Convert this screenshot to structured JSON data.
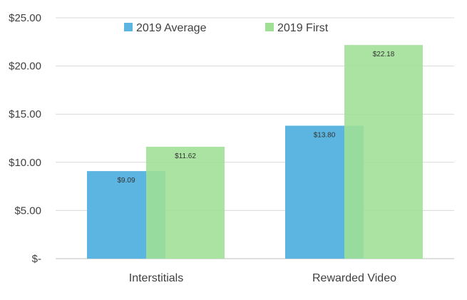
{
  "chart_data": {
    "type": "bar",
    "categories": [
      "Interstitials",
      "Rewarded Video"
    ],
    "series": [
      {
        "name": "2019 Average",
        "values": [
          9.09,
          13.8
        ],
        "labels": [
          "$9.09",
          "$13.80"
        ],
        "color": "#5BB5E0"
      },
      {
        "name": "2019 First",
        "values": [
          11.62,
          22.18
        ],
        "labels": [
          "$11.62",
          "$22.18"
        ],
        "color": "#9FE095"
      }
    ],
    "ylim": [
      0,
      25
    ],
    "yticks": [
      0,
      5,
      10,
      15,
      20,
      25
    ],
    "ytick_labels": [
      "$-",
      "$5.00",
      "$10.00",
      "$15.00",
      "$20.00",
      "$25.00"
    ],
    "title": "",
    "xlabel": "",
    "ylabel": "",
    "grid": true,
    "legend": "top"
  }
}
